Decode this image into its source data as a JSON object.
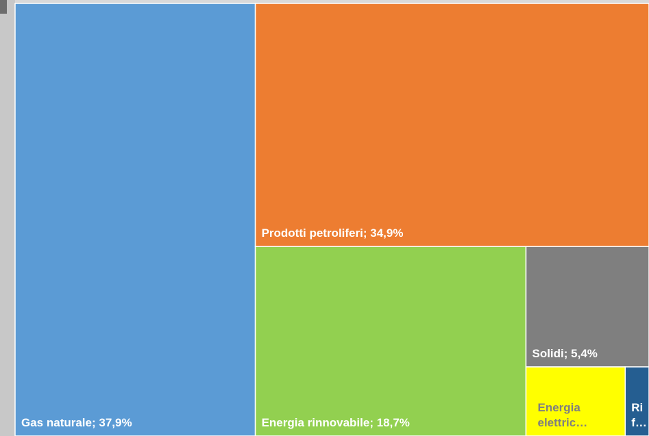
{
  "chart_data": {
    "type": "treemap",
    "categories": [
      "Gas naturale",
      "Prodotti petroliferi",
      "Energia rinnovabile",
      "Solidi",
      "Energia elettric…",
      "Ri f…"
    ],
    "values": [
      37.9,
      34.9,
      18.7,
      5.4,
      2.5,
      0.6
    ],
    "value_labels": [
      "37,9%",
      "34,9%",
      "18,7%",
      "5,4%",
      null,
      null
    ],
    "label_separator": "; ",
    "colors": [
      "#5b9bd5",
      "#ed7d31",
      "#92d050",
      "#7f7f7f",
      "#ffff00",
      "#255e91"
    ],
    "label_colors": [
      "#ffffff",
      "#ffffff",
      "#ffffff",
      "#ffffff",
      "#7f7f7f",
      "#ffffff"
    ]
  }
}
